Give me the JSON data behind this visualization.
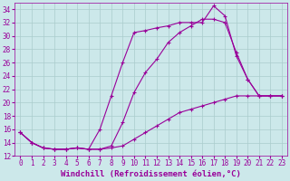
{
  "background_color": "#cce8ea",
  "grid_color": "#aacccc",
  "line_color": "#990099",
  "marker": "+",
  "markersize": 3,
  "linewidth": 0.8,
  "xlabel": "Windchill (Refroidissement éolien,°C)",
  "xlabel_fontsize": 6.5,
  "tick_fontsize": 5.5,
  "ylim": [
    12,
    35
  ],
  "xlim": [
    -0.5,
    23.5
  ],
  "yticks": [
    12,
    14,
    16,
    18,
    20,
    22,
    24,
    26,
    28,
    30,
    32,
    34
  ],
  "xticks": [
    0,
    1,
    2,
    3,
    4,
    5,
    6,
    7,
    8,
    9,
    10,
    11,
    12,
    13,
    14,
    15,
    16,
    17,
    18,
    19,
    20,
    21,
    22,
    23
  ],
  "line1_x": [
    0,
    1,
    2,
    3,
    4,
    5,
    6,
    7,
    8,
    9,
    10,
    11,
    12,
    13,
    14,
    15,
    16,
    17,
    18,
    19,
    20,
    21,
    22,
    23
  ],
  "line1_y": [
    15.5,
    14.0,
    13.2,
    13.0,
    13.0,
    13.2,
    13.0,
    16.0,
    21.0,
    26.0,
    30.5,
    30.8,
    31.2,
    31.5,
    32.0,
    32.0,
    32.0,
    34.5,
    33.0,
    27.0,
    23.5,
    21.0,
    21.0,
    21.0
  ],
  "line2_x": [
    0,
    1,
    2,
    3,
    4,
    5,
    6,
    7,
    8,
    9,
    10,
    11,
    12,
    13,
    14,
    15,
    16,
    17,
    18,
    19,
    20,
    21,
    22,
    23
  ],
  "line2_y": [
    15.5,
    14.0,
    13.2,
    13.0,
    13.0,
    13.2,
    13.0,
    13.0,
    13.5,
    17.0,
    21.5,
    24.5,
    26.5,
    29.0,
    30.5,
    31.5,
    32.5,
    32.5,
    32.0,
    27.5,
    23.5,
    21.0,
    21.0,
    21.0
  ],
  "line3_x": [
    0,
    1,
    2,
    3,
    4,
    5,
    6,
    7,
    8,
    9,
    10,
    11,
    12,
    13,
    14,
    15,
    16,
    17,
    18,
    19,
    20,
    21,
    22,
    23
  ],
  "line3_y": [
    15.5,
    14.0,
    13.2,
    13.0,
    13.0,
    13.2,
    13.0,
    13.0,
    13.2,
    13.5,
    14.5,
    15.5,
    16.5,
    17.5,
    18.5,
    19.0,
    19.5,
    20.0,
    20.5,
    21.0,
    21.0,
    21.0,
    21.0,
    21.0
  ]
}
